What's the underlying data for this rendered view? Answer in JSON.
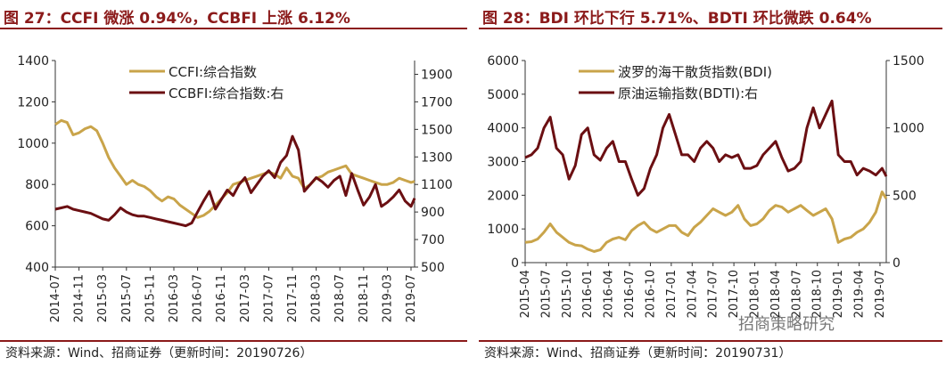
{
  "colors": {
    "gold": "#c9a44a",
    "maroon": "#6b0f12",
    "title": "#8b1a1a"
  },
  "left_panel": {
    "title": "图 27：CCFI 微涨 0.94%，CCBFI 上涨 6.12%",
    "source": "资料来源：Wind、招商证券（更新时间：20190726）"
  },
  "right_panel": {
    "title": "图 28：BDI 环比下行 5.71%、BDTI 环比微跌 0.64%",
    "source": "资料来源：Wind、招商证券（更新时间：20190731）",
    "watermark": "招商策略研究"
  },
  "chart_data": [
    {
      "type": "line",
      "title": "CCFI 微涨 0.94%，CCBFI 上涨 6.12%",
      "x_tick_labels": [
        "2014-07",
        "2014-11",
        "2015-03",
        "2015-07",
        "2015-11",
        "2016-03",
        "2016-07",
        "2016-11",
        "2017-03",
        "2017-07",
        "2017-11",
        "2018-03",
        "2018-07",
        "2018-11",
        "2019-03",
        "2019-07"
      ],
      "x_range": [
        0,
        15.15
      ],
      "y_left": {
        "min": 400,
        "max": 1400,
        "ticks": [
          400,
          600,
          800,
          1000,
          1200,
          1400
        ]
      },
      "y_right": {
        "min": 500,
        "max": 2000,
        "ticks": [
          500,
          700,
          900,
          1100,
          1300,
          1500,
          1700,
          1900
        ]
      },
      "grid": false,
      "legend_position": "top-center",
      "series": [
        {
          "name": "CCFI:综合指数",
          "axis": "left",
          "color": "#c9a44a",
          "x": [
            0,
            0.25,
            0.5,
            0.75,
            1.0,
            1.25,
            1.5,
            1.75,
            2.0,
            2.25,
            2.5,
            2.75,
            3.0,
            3.25,
            3.5,
            3.75,
            4.0,
            4.25,
            4.5,
            4.75,
            5.0,
            5.25,
            5.5,
            5.75,
            6.0,
            6.25,
            6.5,
            6.75,
            7.0,
            7.25,
            7.5,
            7.75,
            8.0,
            8.25,
            8.5,
            8.75,
            9.0,
            9.25,
            9.5,
            9.75,
            10.0,
            10.25,
            10.5,
            10.75,
            11.0,
            11.25,
            11.5,
            11.75,
            12.0,
            12.25,
            12.5,
            12.75,
            13.0,
            13.25,
            13.5,
            13.75,
            14.0,
            14.25,
            14.5,
            14.75,
            15.0,
            15.15
          ],
          "y": [
            1090,
            1110,
            1100,
            1040,
            1050,
            1070,
            1080,
            1060,
            1000,
            930,
            880,
            840,
            800,
            820,
            800,
            790,
            770,
            740,
            720,
            740,
            730,
            700,
            680,
            660,
            640,
            650,
            670,
            700,
            730,
            760,
            800,
            810,
            820,
            830,
            840,
            850,
            860,
            850,
            830,
            880,
            840,
            830,
            780,
            800,
            830,
            840,
            860,
            870,
            880,
            890,
            850,
            840,
            830,
            820,
            810,
            800,
            800,
            810,
            830,
            820,
            810,
            815
          ]
        },
        {
          "name": "CCBFI:综合指数:右",
          "axis": "right",
          "color": "#6b0f12",
          "x": [
            0,
            0.25,
            0.5,
            0.75,
            1.0,
            1.25,
            1.5,
            1.75,
            2.0,
            2.25,
            2.5,
            2.75,
            3.0,
            3.25,
            3.5,
            3.75,
            4.0,
            4.25,
            4.5,
            4.75,
            5.0,
            5.25,
            5.5,
            5.75,
            6.0,
            6.25,
            6.5,
            6.75,
            7.0,
            7.25,
            7.5,
            7.75,
            8.0,
            8.25,
            8.5,
            8.75,
            9.0,
            9.25,
            9.5,
            9.75,
            10.0,
            10.25,
            10.5,
            10.75,
            11.0,
            11.25,
            11.5,
            11.75,
            12.0,
            12.25,
            12.5,
            12.75,
            13.0,
            13.25,
            13.5,
            13.75,
            14.0,
            14.25,
            14.5,
            14.75,
            15.0,
            15.15
          ],
          "y": [
            920,
            930,
            940,
            920,
            910,
            900,
            890,
            870,
            850,
            840,
            880,
            930,
            900,
            880,
            870,
            870,
            860,
            850,
            840,
            830,
            820,
            810,
            800,
            820,
            900,
            980,
            1050,
            920,
            990,
            1060,
            1020,
            1100,
            1150,
            1040,
            1100,
            1160,
            1200,
            1150,
            1260,
            1310,
            1450,
            1350,
            1050,
            1100,
            1150,
            1120,
            1080,
            1130,
            1160,
            1020,
            1180,
            1060,
            950,
            1010,
            1100,
            940,
            970,
            1010,
            1060,
            980,
            940,
            1000
          ]
        }
      ]
    },
    {
      "type": "line",
      "title": "BDI 环比下行 5.71%、BDTI 环比微跌 0.64%",
      "x_tick_labels": [
        "2015-04",
        "2015-07",
        "2015-10",
        "2016-01",
        "2016-04",
        "2016-07",
        "2016-10",
        "2017-01",
        "2017-04",
        "2017-07",
        "2017-10",
        "2018-01",
        "2018-04",
        "2018-07",
        "2018-10",
        "2019-01",
        "2019-04",
        "2019-07"
      ],
      "x_range": [
        0,
        17.3
      ],
      "y_left": {
        "min": 0,
        "max": 6000,
        "ticks": [
          0,
          1000,
          2000,
          3000,
          4000,
          5000,
          6000
        ]
      },
      "y_right": {
        "min": 0,
        "max": 1500,
        "ticks": [
          0,
          500,
          1000,
          1500
        ]
      },
      "grid": false,
      "legend_position": "top-center",
      "series": [
        {
          "name": "波罗的海干散货指数(BDI)",
          "axis": "left",
          "color": "#c9a44a",
          "x": [
            0,
            0.3,
            0.6,
            0.9,
            1.2,
            1.5,
            1.8,
            2.1,
            2.4,
            2.7,
            3.0,
            3.3,
            3.6,
            3.9,
            4.2,
            4.5,
            4.8,
            5.1,
            5.4,
            5.7,
            6.0,
            6.3,
            6.6,
            6.9,
            7.2,
            7.5,
            7.8,
            8.1,
            8.4,
            8.7,
            9.0,
            9.3,
            9.6,
            9.9,
            10.2,
            10.5,
            10.8,
            11.1,
            11.4,
            11.7,
            12.0,
            12.3,
            12.6,
            12.9,
            13.2,
            13.5,
            13.8,
            14.1,
            14.4,
            14.7,
            15.0,
            15.3,
            15.6,
            15.9,
            16.2,
            16.5,
            16.8,
            17.1,
            17.3
          ],
          "y": [
            600,
            620,
            700,
            900,
            1150,
            900,
            750,
            600,
            520,
            500,
            400,
            330,
            380,
            600,
            700,
            750,
            680,
            950,
            1100,
            1200,
            1000,
            900,
            1000,
            1100,
            1100,
            900,
            800,
            1050,
            1200,
            1400,
            1600,
            1500,
            1400,
            1500,
            1700,
            1300,
            1100,
            1150,
            1300,
            1550,
            1700,
            1650,
            1500,
            1600,
            1700,
            1550,
            1400,
            1500,
            1600,
            1300,
            600,
            700,
            750,
            900,
            1000,
            1200,
            1500,
            2100,
            1900
          ]
        },
        {
          "name": "原油运输指数(BDTI):右",
          "axis": "right",
          "color": "#6b0f12",
          "x": [
            0,
            0.3,
            0.6,
            0.9,
            1.2,
            1.5,
            1.8,
            2.1,
            2.4,
            2.7,
            3.0,
            3.3,
            3.6,
            3.9,
            4.2,
            4.5,
            4.8,
            5.1,
            5.4,
            5.7,
            6.0,
            6.3,
            6.6,
            6.9,
            7.2,
            7.5,
            7.8,
            8.1,
            8.4,
            8.7,
            9.0,
            9.3,
            9.6,
            9.9,
            10.2,
            10.5,
            10.8,
            11.1,
            11.4,
            11.7,
            12.0,
            12.3,
            12.6,
            12.9,
            13.2,
            13.5,
            13.8,
            14.1,
            14.4,
            14.7,
            15.0,
            15.3,
            15.6,
            15.9,
            16.2,
            16.5,
            16.8,
            17.1,
            17.3
          ],
          "y": [
            780,
            800,
            850,
            1000,
            1080,
            850,
            800,
            620,
            720,
            950,
            1000,
            800,
            760,
            850,
            900,
            750,
            750,
            620,
            500,
            550,
            700,
            800,
            1000,
            1100,
            950,
            800,
            800,
            750,
            850,
            900,
            850,
            750,
            800,
            780,
            800,
            700,
            700,
            720,
            800,
            850,
            900,
            780,
            680,
            700,
            750,
            1000,
            1150,
            1000,
            1100,
            1200,
            800,
            750,
            750,
            650,
            700,
            680,
            650,
            700,
            640
          ]
        }
      ]
    }
  ]
}
